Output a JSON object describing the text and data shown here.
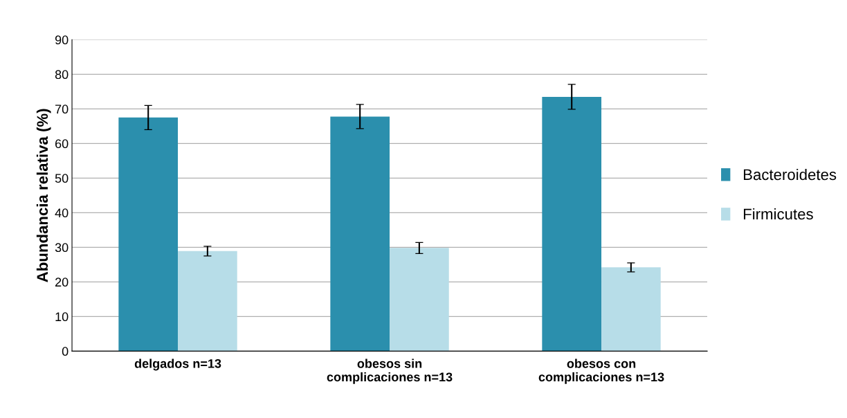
{
  "chart_data": {
    "type": "bar",
    "ylabel": "Abundancia relativa (%)",
    "categories": [
      "delgados n=13",
      "obesos sin\ncomplicaciones n=13",
      "obesos con\ncomplicaciones n=13"
    ],
    "series": [
      {
        "name": "Bacteroidetes",
        "color": "#2b8fad",
        "values": [
          67.5,
          67.8,
          73.5
        ],
        "errors": [
          3.5,
          3.5,
          3.6
        ]
      },
      {
        "name": "Firmicutes",
        "color": "#b7dde8",
        "values": [
          28.9,
          29.8,
          24.2
        ],
        "errors": [
          1.4,
          1.6,
          1.3
        ]
      }
    ],
    "ylim": [
      0,
      90
    ],
    "yticks": [
      0,
      10,
      20,
      30,
      40,
      50,
      60,
      70,
      80,
      90
    ],
    "grid": "y",
    "legend": "right"
  }
}
